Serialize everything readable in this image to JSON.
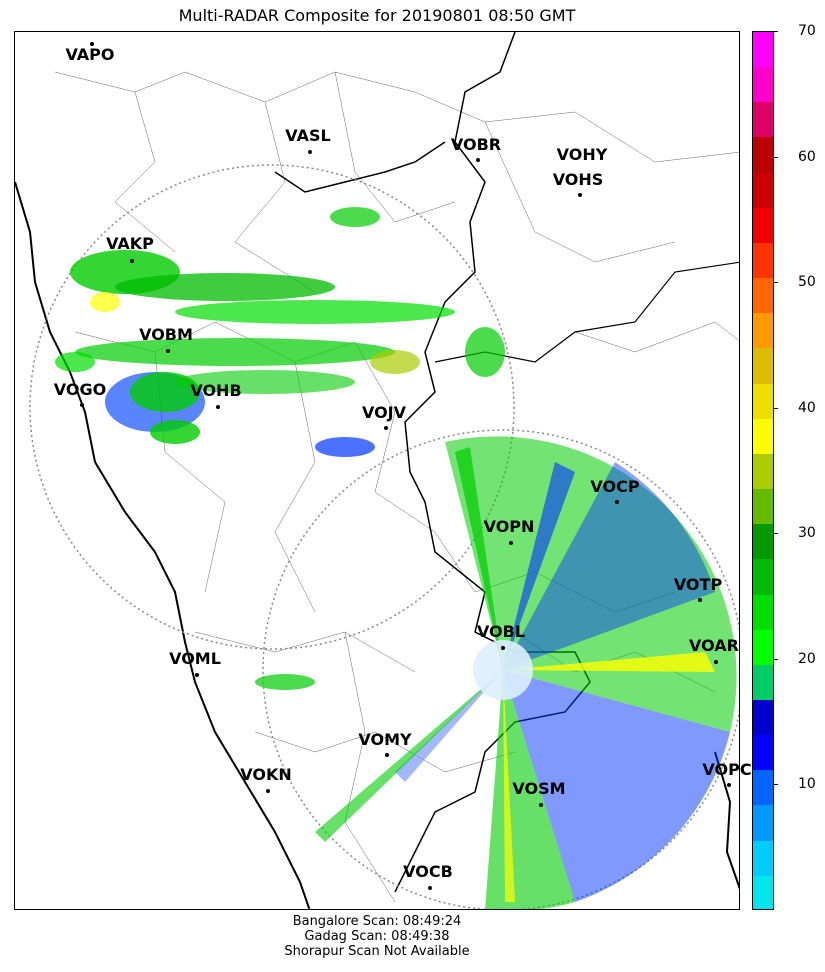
{
  "title": "Multi-RADAR Composite for 20190801 08:50 GMT",
  "footer": {
    "line1": "Bangalore Scan: 08:49:24",
    "line2": "Gadag Scan: 08:49:38",
    "line3": "Shorapur Scan Not Available"
  },
  "colorbar": {
    "min": 0,
    "max": 70,
    "ticks": [
      "10",
      "20",
      "30",
      "40",
      "50",
      "60",
      "70"
    ],
    "colors": [
      "#00e5ee",
      "#00ccff",
      "#0099ff",
      "#0066ff",
      "#0000ff",
      "#0000cc",
      "#00cc66",
      "#00ff00",
      "#00dd00",
      "#00bb00",
      "#009900",
      "#66bb00",
      "#aacc00",
      "#ffff00",
      "#eedd00",
      "#ddbb00",
      "#ff9900",
      "#ff6600",
      "#ff3300",
      "#ee0000",
      "#cc0000",
      "#bb0000",
      "#dd0066",
      "#ff00cc",
      "#ff00ff"
    ]
  },
  "stations": [
    {
      "code": "VAPO"
    },
    {
      "code": "VASL"
    },
    {
      "code": "VOBR"
    },
    {
      "code": "VOHY"
    },
    {
      "code": "VOHS"
    },
    {
      "code": "VAKP"
    },
    {
      "code": "VOBM"
    },
    {
      "code": "VOGO"
    },
    {
      "code": "VOHB"
    },
    {
      "code": "VOJV"
    },
    {
      "code": "VOCP"
    },
    {
      "code": "VOPN"
    },
    {
      "code": "VOTP"
    },
    {
      "code": "VOBL"
    },
    {
      "code": "VOAR"
    },
    {
      "code": "VOML"
    },
    {
      "code": "VOMY"
    },
    {
      "code": "VOKN"
    },
    {
      "code": "VOPC"
    },
    {
      "code": "VOSM"
    },
    {
      "code": "VOCB"
    }
  ]
}
